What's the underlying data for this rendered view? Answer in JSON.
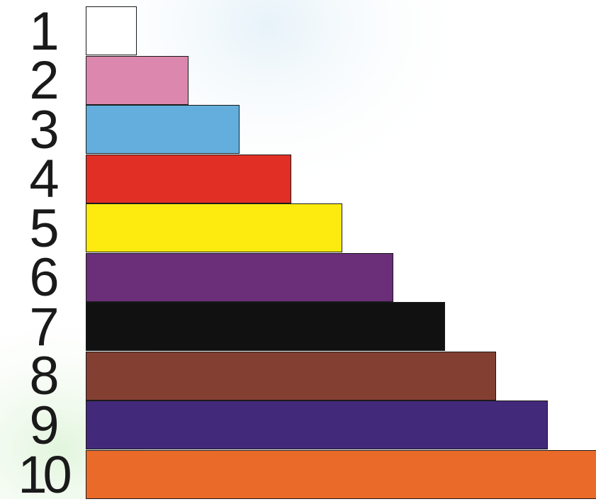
{
  "rods": [
    {
      "label": "1",
      "length": 1,
      "color": "#ffffff"
    },
    {
      "label": "2",
      "length": 2,
      "color": "#dc87ad"
    },
    {
      "label": "3",
      "length": 3,
      "color": "#63aedc"
    },
    {
      "label": "4",
      "length": 4,
      "color": "#e22f26"
    },
    {
      "label": "5",
      "length": 5,
      "color": "#fdeb0f"
    },
    {
      "label": "6",
      "length": 6,
      "color": "#6b2e79"
    },
    {
      "label": "7",
      "length": 7,
      "color": "#111111"
    },
    {
      "label": "8",
      "length": 8,
      "color": "#834032"
    },
    {
      "label": "9",
      "length": 9,
      "color": "#432979"
    },
    {
      "label": "10",
      "length": 10,
      "color": "#ea6a2a"
    }
  ]
}
